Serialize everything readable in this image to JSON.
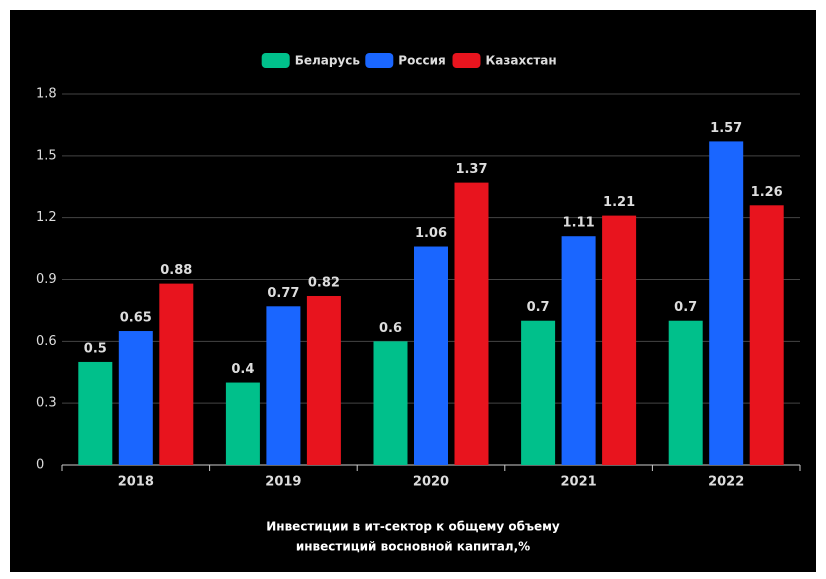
{
  "chart_data": {
    "type": "bar",
    "title": [
      "Инвестиции в ит-сектор к общему объему",
      "инвестиций восновной капитал,%"
    ],
    "categories": [
      "2018",
      "2019",
      "2020",
      "2021",
      "2022"
    ],
    "series": [
      {
        "name": "Беларусь",
        "color": "#00c08b",
        "values": [
          0.5,
          0.4,
          0.6,
          0.7,
          0.7
        ]
      },
      {
        "name": "Россия",
        "color": "#1a66ff",
        "values": [
          0.65,
          0.77,
          1.06,
          1.11,
          1.57
        ]
      },
      {
        "name": "Казахстан",
        "color": "#e8141e",
        "values": [
          0.88,
          0.82,
          1.37,
          1.21,
          1.26
        ]
      }
    ],
    "ylim": [
      0,
      1.8
    ],
    "yticks": [
      0,
      0.3,
      0.6,
      0.9,
      1.2,
      1.5,
      1.8
    ],
    "grid": true,
    "legend": "top"
  }
}
